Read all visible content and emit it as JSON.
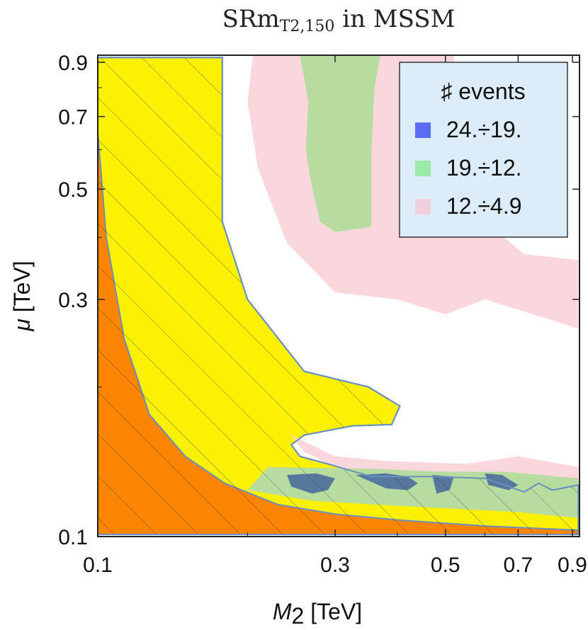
{
  "chart_data": {
    "type": "contour",
    "title": {
      "main": "SRm",
      "subscript": "T2,150",
      "suffix": " in MSSM"
    },
    "xlabel": {
      "symbol": "M",
      "subscript": "2",
      "unit": " [TeV]"
    },
    "ylabel": {
      "symbol": "μ",
      "unit": " [TeV]"
    },
    "x_scale": "log",
    "y_scale": "log",
    "xlim": [
      0.1,
      0.93
    ],
    "ylim": [
      0.1,
      0.93
    ],
    "x_ticks": [
      {
        "value": 0.1,
        "label": "0.1"
      },
      {
        "value": 0.3,
        "label": "0.3"
      },
      {
        "value": 0.5,
        "label": "0.5"
      },
      {
        "value": 0.7,
        "label": "0.7"
      },
      {
        "value": 0.9,
        "label": "0.9"
      }
    ],
    "y_ticks": [
      {
        "value": 0.1,
        "label": "0.1"
      },
      {
        "value": 0.3,
        "label": "0.3"
      },
      {
        "value": 0.5,
        "label": "0.5"
      },
      {
        "value": 0.7,
        "label": "0.7"
      },
      {
        "value": 0.9,
        "label": "0.9"
      }
    ],
    "legend": {
      "title": "♯ events",
      "position": "top-right",
      "entries": [
        {
          "label": "24.÷19.",
          "color": "#5a6cf0"
        },
        {
          "label": "19.÷12.",
          "color": "#9aeaa8"
        },
        {
          "label": "12.÷4.9",
          "color": "#efd0dc"
        }
      ]
    },
    "regions": [
      {
        "name": "hatched-region",
        "color": "#fbf100",
        "outline": [
          [
            0.1,
            0.92
          ],
          [
            0.178,
            0.92
          ],
          [
            0.178,
            0.43
          ],
          [
            0.2,
            0.3
          ],
          [
            0.26,
            0.215
          ],
          [
            0.35,
            0.2
          ],
          [
            0.405,
            0.183
          ],
          [
            0.39,
            0.168
          ],
          [
            0.325,
            0.167
          ],
          [
            0.26,
            0.16
          ],
          [
            0.245,
            0.153
          ],
          [
            0.255,
            0.145
          ],
          [
            0.29,
            0.14
          ],
          [
            0.355,
            0.132
          ],
          [
            0.47,
            0.132
          ],
          [
            0.6,
            0.131
          ],
          [
            0.72,
            0.123
          ],
          [
            0.77,
            0.128
          ],
          [
            0.82,
            0.124
          ],
          [
            0.925,
            0.127
          ],
          [
            0.925,
            0.101
          ],
          [
            0.1,
            0.101
          ]
        ]
      },
      {
        "name": "orange-region",
        "color": "#fb8500",
        "outline": [
          [
            0.1,
            0.65
          ],
          [
            0.104,
            0.4
          ],
          [
            0.113,
            0.25
          ],
          [
            0.127,
            0.176
          ],
          [
            0.15,
            0.145
          ],
          [
            0.18,
            0.128
          ],
          [
            0.23,
            0.116
          ],
          [
            0.3,
            0.111
          ],
          [
            0.4,
            0.108
          ],
          [
            0.6,
            0.105
          ],
          [
            0.925,
            0.103
          ],
          [
            0.925,
            0.101
          ],
          [
            0.1,
            0.101
          ]
        ]
      },
      {
        "name": "pink-region",
        "color": "#fad7dc",
        "outline": [
          [
            0.205,
            0.93
          ],
          [
            0.52,
            0.93
          ],
          [
            0.52,
            0.46
          ],
          [
            0.6,
            0.43
          ],
          [
            0.72,
            0.37
          ],
          [
            0.925,
            0.36
          ],
          [
            0.925,
            0.262
          ],
          [
            0.75,
            0.28
          ],
          [
            0.6,
            0.3
          ],
          [
            0.5,
            0.28
          ],
          [
            0.4,
            0.3
          ],
          [
            0.3,
            0.31
          ],
          [
            0.24,
            0.39
          ],
          [
            0.21,
            0.55
          ],
          [
            0.2,
            0.75
          ]
        ]
      },
      {
        "name": "pink-strip",
        "color": "#fad7dc",
        "outline": [
          [
            0.245,
            0.16
          ],
          [
            0.3,
            0.145
          ],
          [
            0.38,
            0.142
          ],
          [
            0.55,
            0.14
          ],
          [
            0.7,
            0.145
          ],
          [
            0.925,
            0.138
          ],
          [
            0.925,
            0.127
          ],
          [
            0.7,
            0.128
          ],
          [
            0.5,
            0.132
          ],
          [
            0.32,
            0.134
          ],
          [
            0.26,
            0.148
          ]
        ]
      },
      {
        "name": "green-region",
        "color": "#b7dca0",
        "outline": [
          [
            0.255,
            0.93
          ],
          [
            0.37,
            0.93
          ],
          [
            0.36,
            0.8
          ],
          [
            0.355,
            0.6
          ],
          [
            0.355,
            0.42
          ],
          [
            0.3,
            0.41
          ],
          [
            0.28,
            0.43
          ],
          [
            0.27,
            0.5
          ],
          [
            0.262,
            0.6
          ],
          [
            0.265,
            0.75
          ]
        ]
      },
      {
        "name": "green-strip",
        "color": "#b7dca0",
        "outline": [
          [
            0.22,
            0.138
          ],
          [
            0.35,
            0.137
          ],
          [
            0.5,
            0.135
          ],
          [
            0.66,
            0.135
          ],
          [
            0.925,
            0.131
          ],
          [
            0.925,
            0.109
          ],
          [
            0.7,
            0.112
          ],
          [
            0.5,
            0.114
          ],
          [
            0.36,
            0.116
          ],
          [
            0.27,
            0.118
          ],
          [
            0.2,
            0.124
          ]
        ]
      },
      {
        "name": "blue-patch-1",
        "color": "#56789c",
        "outline": [
          [
            0.24,
            0.133
          ],
          [
            0.275,
            0.134
          ],
          [
            0.3,
            0.131
          ],
          [
            0.29,
            0.124
          ],
          [
            0.27,
            0.122
          ],
          [
            0.245,
            0.126
          ]
        ]
      },
      {
        "name": "blue-patch-2",
        "color": "#56789c",
        "outline": [
          [
            0.33,
            0.133
          ],
          [
            0.38,
            0.134
          ],
          [
            0.42,
            0.132
          ],
          [
            0.44,
            0.128
          ],
          [
            0.42,
            0.124
          ],
          [
            0.38,
            0.125
          ]
        ]
      },
      {
        "name": "blue-patch-3",
        "color": "#56789c",
        "outline": [
          [
            0.47,
            0.133
          ],
          [
            0.52,
            0.132
          ],
          [
            0.51,
            0.124
          ],
          [
            0.48,
            0.122
          ]
        ]
      },
      {
        "name": "blue-patch-4",
        "color": "#56789c",
        "outline": [
          [
            0.6,
            0.134
          ],
          [
            0.65,
            0.133
          ],
          [
            0.7,
            0.127
          ],
          [
            0.67,
            0.124
          ],
          [
            0.61,
            0.127
          ]
        ]
      }
    ]
  }
}
